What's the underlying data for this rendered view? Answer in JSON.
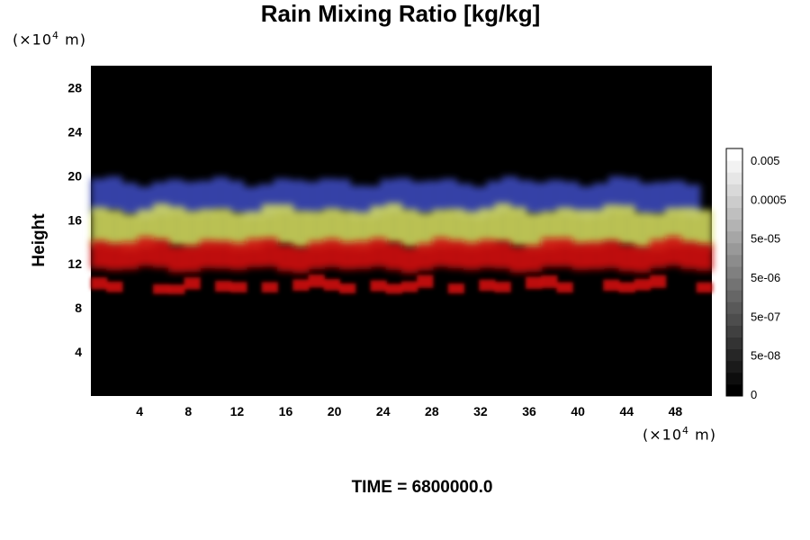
{
  "chart_data": {
    "type": "heatmap",
    "title": "Rain Mixing Ratio [kg/kg]",
    "ylabel": "Height",
    "xlabel": "",
    "x_unit": "(×10⁴ m)",
    "y_unit": "(×10⁴ m)",
    "xlim": [
      0,
      51
    ],
    "ylim": [
      0,
      30
    ],
    "x_ticks": [
      4,
      8,
      12,
      16,
      20,
      24,
      28,
      32,
      36,
      40,
      44,
      48
    ],
    "y_ticks": [
      4,
      8,
      12,
      16,
      20,
      24,
      28
    ],
    "colorbar": {
      "labels": [
        "0.005",
        "0.0005",
        "5e-05",
        "5e-06",
        "5e-07",
        "5e-08",
        "0"
      ],
      "levels": 21,
      "colors": [
        "#000000",
        "#ffffff"
      ]
    },
    "layers": [
      {
        "color": "#3a48b8",
        "y_range": [
          16.5,
          19.5
        ],
        "x_range": [
          0,
          50
        ]
      },
      {
        "color": "#d8e060",
        "y_range": [
          13.5,
          17.0
        ],
        "x_range": [
          0,
          51
        ]
      },
      {
        "color": "#d01010",
        "y_range": [
          11.5,
          14.0
        ],
        "x_range": [
          0,
          51
        ]
      },
      {
        "color": "#d01010",
        "y_range": [
          9.5,
          10.5
        ],
        "x_range": [
          0,
          51
        ]
      }
    ],
    "grid": false,
    "legend": "right colorbar"
  },
  "time_label": "TIME = 6800000.0"
}
